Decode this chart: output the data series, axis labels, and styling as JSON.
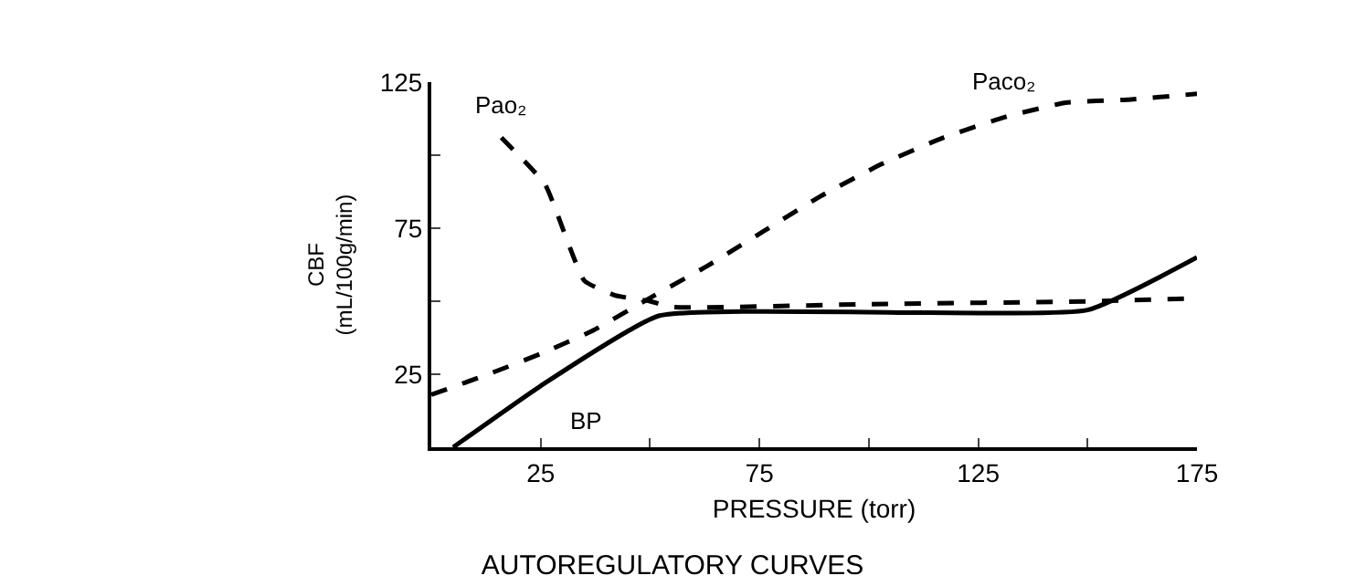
{
  "chart_data": {
    "type": "line",
    "title": "AUTOREGULATORY CURVES",
    "xlabel": "PRESSURE (torr)",
    "ylabel": "CBF (mL/100g/min)",
    "xlim": [
      0,
      175
    ],
    "ylim": [
      0,
      125
    ],
    "xticks": [
      25,
      {
        "value": 50,
        "label": null
      },
      75,
      {
        "value": 100,
        "label": null
      },
      125,
      {
        "value": 150,
        "label": null
      },
      175
    ],
    "yticks": [
      25,
      {
        "value": 50,
        "label": null
      },
      75,
      {
        "value": 100,
        "label": null
      },
      125
    ],
    "legend": false,
    "marker": "none",
    "series": [
      {
        "name": "Paco₂",
        "color": "#000000",
        "line_style": "dashed",
        "x": [
          0,
          13,
          25,
          37,
          51,
          63,
          76,
          89,
          103,
          117,
          131,
          145,
          159,
          175
        ],
        "values": [
          18,
          25,
          32,
          40,
          52,
          62,
          74,
          86,
          97,
          106,
          113,
          118,
          119,
          121
        ]
      },
      {
        "name": "Pao₂",
        "color": "#000000",
        "line_style": "dashed",
        "x": [
          16,
          26,
          35,
          42,
          50,
          55,
          100,
          152,
          175
        ],
        "values": [
          106,
          90,
          57,
          52,
          50,
          48,
          49,
          50,
          51
        ]
      },
      {
        "name": "BP",
        "color": "#000000",
        "line_style": "solid",
        "x": [
          5,
          25,
          52,
          150,
          175
        ],
        "values": [
          0,
          21,
          45,
          47,
          65
        ]
      }
    ]
  }
}
